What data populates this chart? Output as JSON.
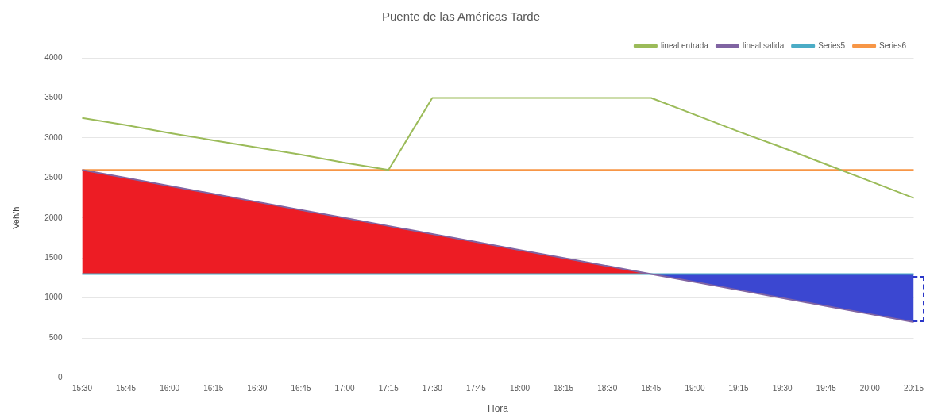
{
  "chart_data": {
    "type": "line",
    "title": "Puente de las Américas Tarde",
    "xlabel": "Hora",
    "ylabel": "Veh/h",
    "categories": [
      "15:30",
      "15:45",
      "16:00",
      "16:15",
      "16:30",
      "16:45",
      "17:00",
      "17:15",
      "17:30",
      "17:45",
      "18:00",
      "18:15",
      "18:30",
      "18:45",
      "19:00",
      "19:15",
      "19:30",
      "19:45",
      "20:00",
      "20:15"
    ],
    "series": [
      {
        "name": "lineal entrada",
        "color": "#9bbb59",
        "values": [
          3250,
          3160,
          3060,
          2970,
          2880,
          2790,
          2690,
          2600,
          3500,
          3500,
          3500,
          3500,
          3500,
          3500,
          3290,
          3080,
          2880,
          2670,
          2460,
          2250
        ]
      },
      {
        "name": "lineal salida",
        "color": "#8064a2",
        "values": [
          2600,
          2500,
          2400,
          2300,
          2200,
          2100,
          2000,
          1900,
          1800,
          1700,
          1600,
          1500,
          1400,
          1300,
          1200,
          1100,
          1000,
          900,
          800,
          700
        ]
      },
      {
        "name": "Series5",
        "color": "#4bacc6",
        "values": [
          1300,
          1300,
          1300,
          1300,
          1300,
          1300,
          1300,
          1300,
          1300,
          1300,
          1300,
          1300,
          1300,
          1300,
          1300,
          1300,
          1300,
          1300,
          1300,
          1300
        ]
      },
      {
        "name": "Series6",
        "color": "#f79646",
        "values": [
          2600,
          2600,
          2600,
          2600,
          2600,
          2600,
          2600,
          2600,
          2600,
          2600,
          2600,
          2600,
          2600,
          2600,
          2600,
          2600,
          2600,
          2600,
          2600,
          2600
        ]
      }
    ],
    "ylim": [
      0,
      4000
    ],
    "yticks": [
      0,
      500,
      1000,
      1500,
      2000,
      2500,
      3000,
      3500,
      4000
    ],
    "grid": "y",
    "legend": "top right",
    "marker": "none",
    "line_style": "solid"
  }
}
